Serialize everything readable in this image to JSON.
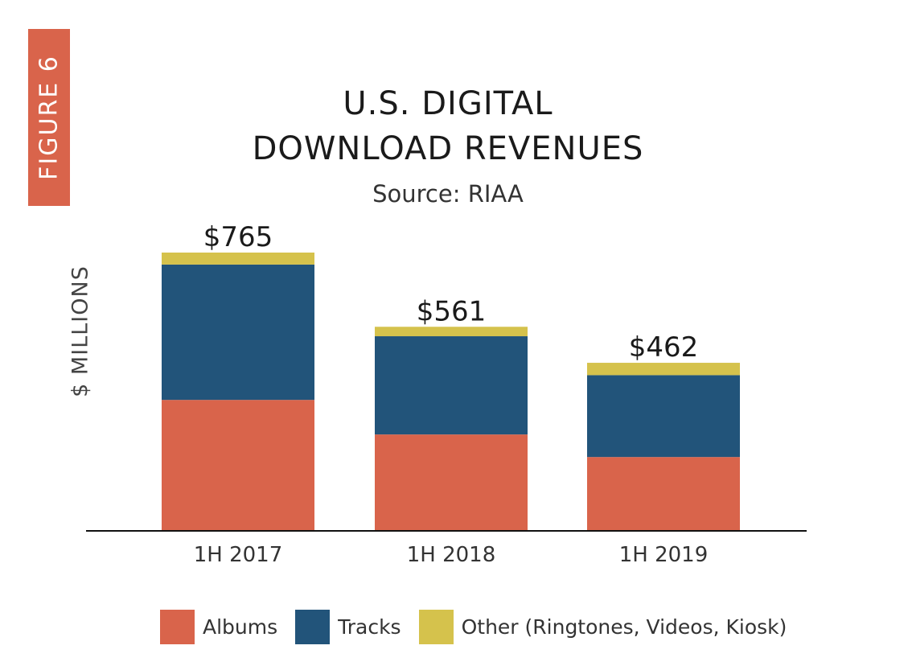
{
  "figure_label": "FIGURE 6",
  "chart_data": {
    "type": "bar",
    "stacked": true,
    "title_line1": "U.S. DIGITAL",
    "title_line2": "DOWNLOAD REVENUES",
    "subtitle": "Source: RIAA",
    "ylabel": "$ MILLIONS",
    "xlabel": "",
    "categories": [
      "1H 2017",
      "1H 2018",
      "1H 2019"
    ],
    "totals_labels": [
      "$765",
      "$561",
      "$462"
    ],
    "series": [
      {
        "name": "Albums",
        "color": "#d9644b",
        "values": [
          360,
          265,
          203
        ]
      },
      {
        "name": "Tracks",
        "color": "#22547a",
        "values": [
          372,
          270,
          225
        ]
      },
      {
        "name": "Other (Ringtones, Videos, Kiosk)",
        "color": "#d5c24c",
        "values": [
          33,
          26,
          34
        ]
      }
    ],
    "ylim": [
      0,
      765
    ],
    "grid": false,
    "legend_position": "bottom"
  }
}
